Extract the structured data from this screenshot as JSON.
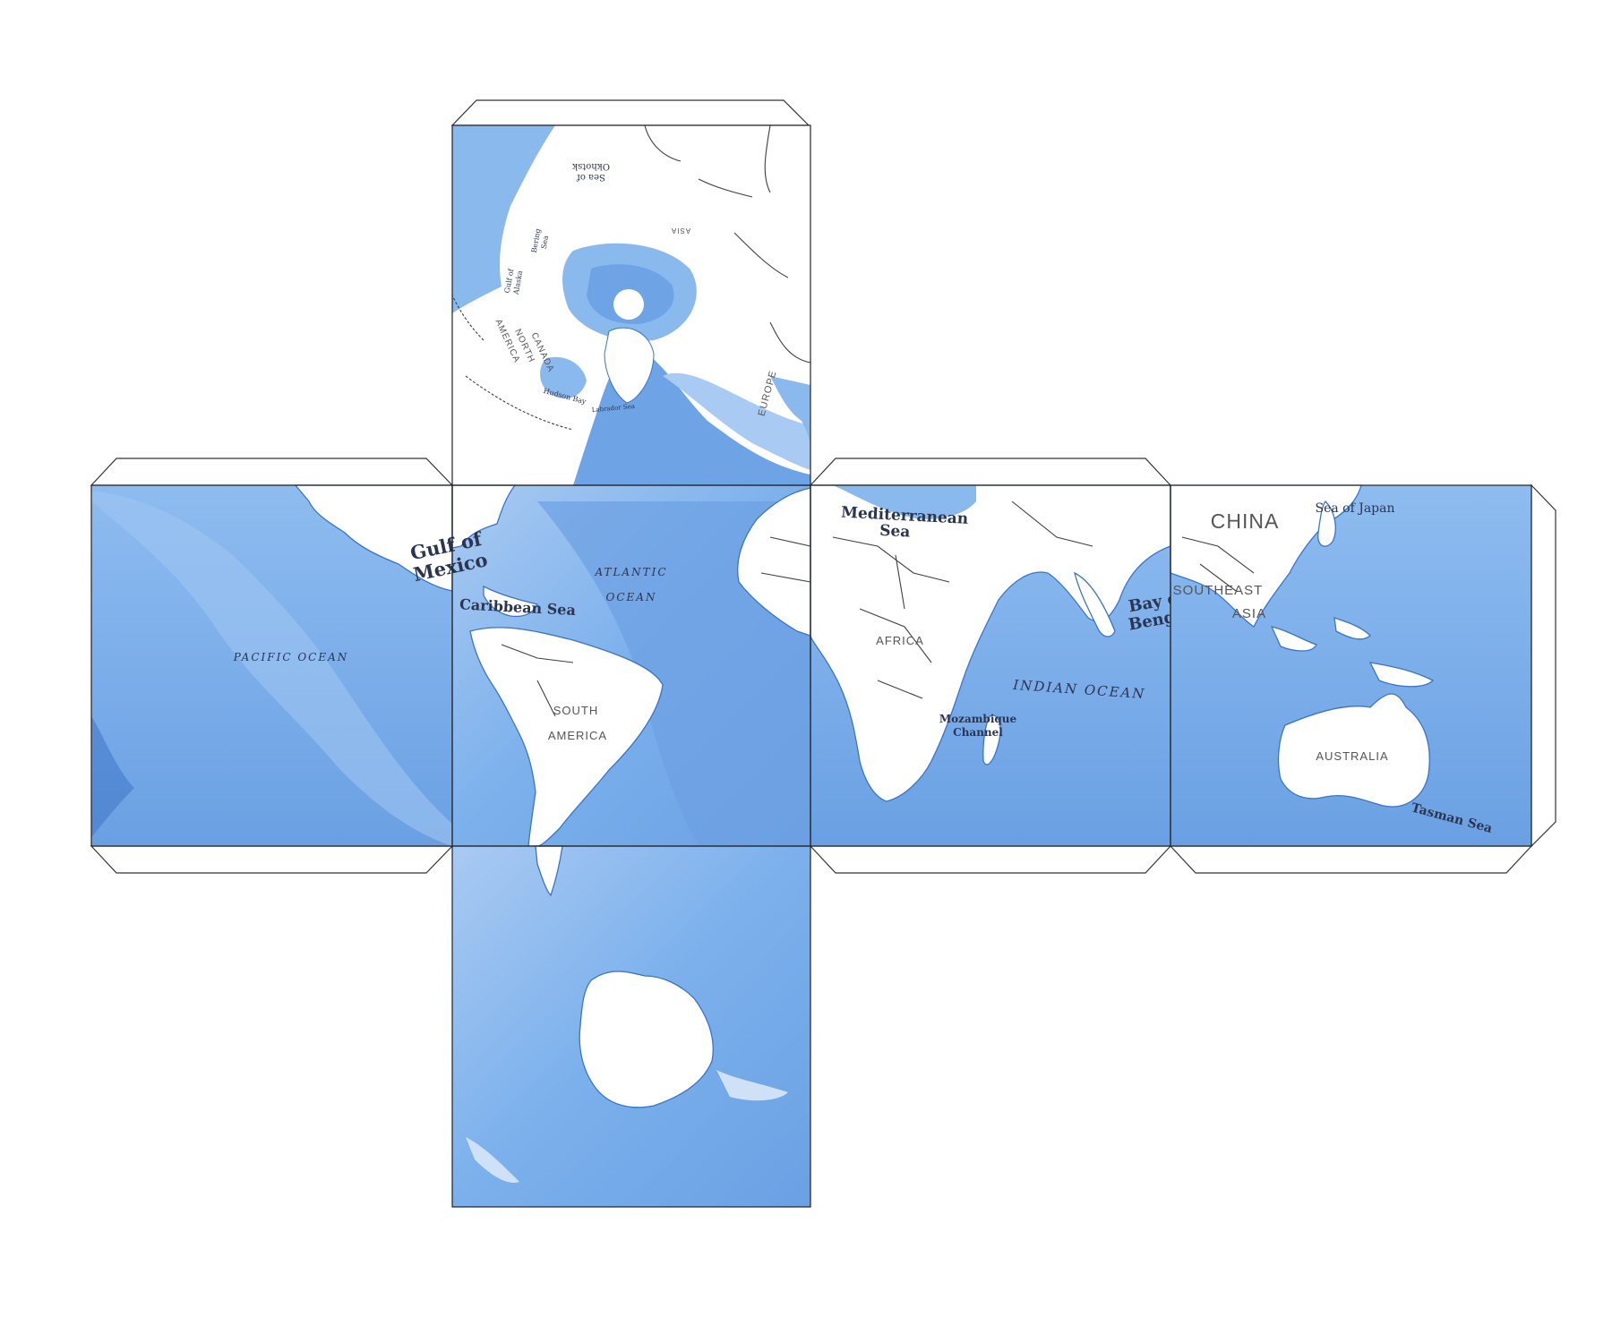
{
  "colors": {
    "ocean": "#6fa4e6",
    "ocean_light": "#a9caf2",
    "ocean_deep": "#5a94de",
    "land": "#ffffff",
    "coast": "#3a75c4",
    "label": "#2b3550"
  },
  "labels": {
    "pacific": "PACIFIC OCEAN",
    "atlantic_1": "ATLANTIC",
    "atlantic_2": "OCEAN",
    "indian": "INDIAN OCEAN",
    "gulf_1": "Gulf of",
    "gulf_2": "Mexico",
    "caribbean": "Caribbean Sea",
    "mediterranean_1": "Mediterranean",
    "mediterranean_2": "Sea",
    "bay_1": "Bay of",
    "bay_2": "Bengal",
    "mozambique_1": "Mozambique",
    "mozambique_2": "Channel",
    "sea_of_japan": "Sea of Japan",
    "tasman": "Tasman Sea",
    "south_america_1": "SOUTH",
    "south_america_2": "AMERICA",
    "africa": "AFRICA",
    "australia": "AUSTRALIA",
    "china": "CHINA",
    "southeast_1": "SOUTHEAST",
    "southeast_2": "ASIA",
    "canada": "CANADA",
    "north_america_1": "NORTH",
    "north_america_2": "AMERICA",
    "hudson_bay": "Hudson Bay",
    "labrador_sea": "Labrador Sea",
    "sea_of_okhotsk_1": "Sea of",
    "sea_of_okhotsk_2": "Okhotsk",
    "bering_sea_1": "Bering",
    "bering_sea_2": "Sea",
    "gulf_alaska_1": "Gulf of",
    "gulf_alaska_2": "Alaska",
    "asia": "ASIA",
    "europe": "EUROPE"
  }
}
